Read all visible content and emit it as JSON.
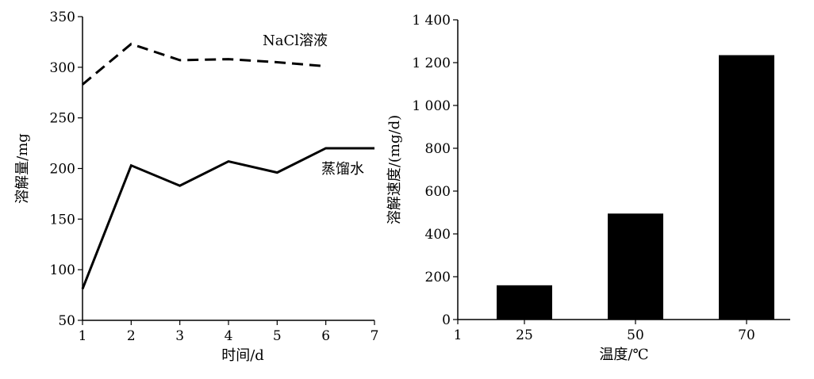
{
  "chart_data": [
    {
      "type": "line",
      "xlabel": "时间/d",
      "ylabel": "溶解量/mg",
      "xlim": [
        1,
        7
      ],
      "ylim": [
        50,
        350
      ],
      "x_ticks": [
        "1",
        "2",
        "3",
        "4",
        "5",
        "6",
        "7"
      ],
      "y_ticks": [
        "50",
        "100",
        "150",
        "200",
        "250",
        "300",
        "350"
      ],
      "series": [
        {
          "name": "NaCl溶液",
          "style": "dashed",
          "x": [
            1,
            2,
            3,
            4,
            5,
            6
          ],
          "y": [
            283,
            323,
            307,
            308,
            305,
            301
          ]
        },
        {
          "name": "蒸馏水",
          "style": "solid",
          "x": [
            1,
            2,
            3,
            4,
            5,
            6,
            7
          ],
          "y": [
            81,
            203,
            183,
            207,
            196,
            220,
            220
          ]
        }
      ],
      "grid": false
    },
    {
      "type": "bar",
      "xlabel": "温度/℃",
      "ylabel": "溶解速度/(mg/d)",
      "ylim": [
        0,
        1400
      ],
      "x_ticks": [
        "1",
        "25",
        "50",
        "70"
      ],
      "y_ticks": [
        "0",
        "200",
        "400",
        "600",
        "800",
        "1 000",
        "1 200",
        "1 400"
      ],
      "categories": [
        "25",
        "50",
        "70"
      ],
      "values": [
        160,
        495,
        1235
      ],
      "bar_color": "#000000",
      "grid": false
    }
  ]
}
